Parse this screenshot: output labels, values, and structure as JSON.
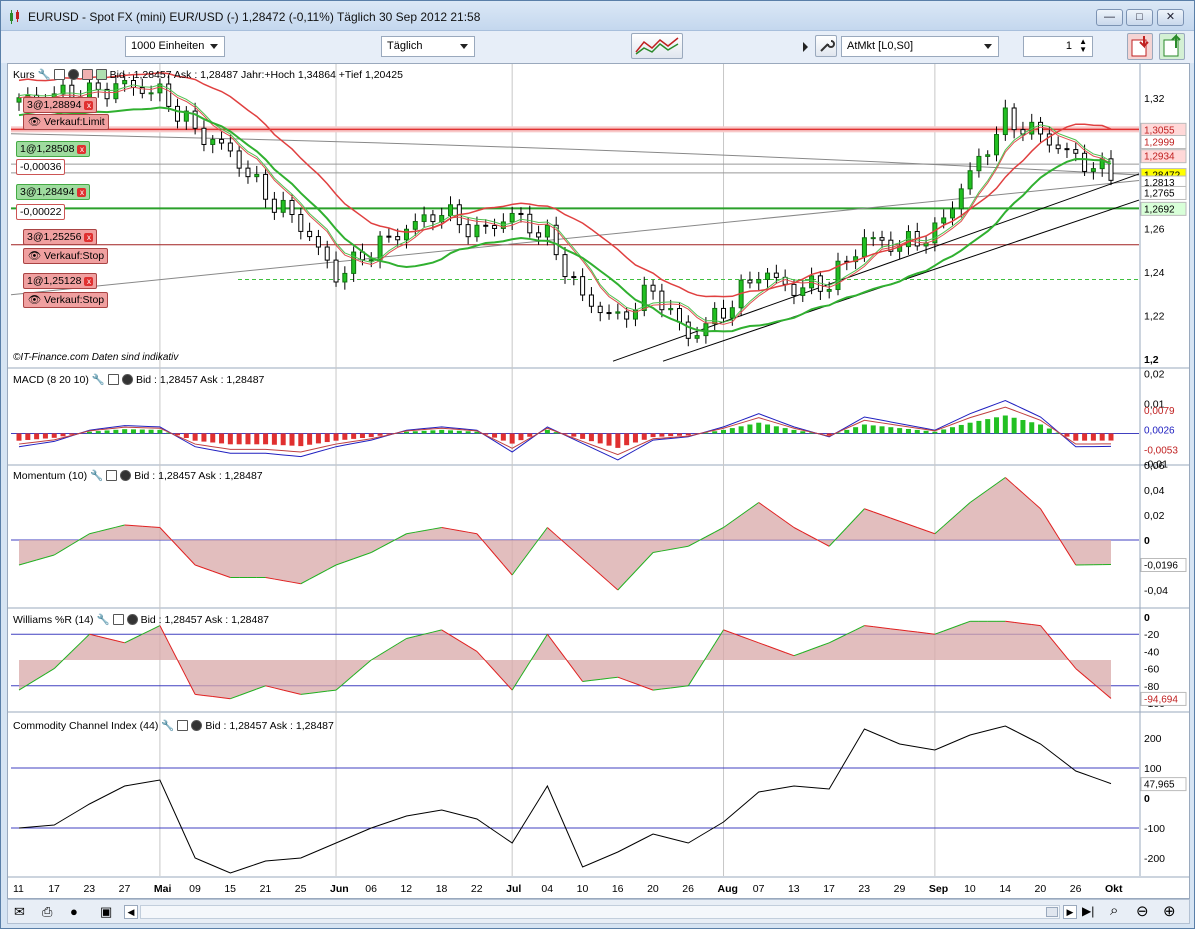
{
  "window": {
    "title": "EURUSD - Spot FX (mini) EUR/USD (-)  1,28472 (-0,11%)   Täglich  30 Sep 2012 21:58"
  },
  "toolbar": {
    "units": "1000 Einheiten",
    "period": "Täglich",
    "order_type": "AtMkt [L0,S0]",
    "quantity": "1"
  },
  "panels": {
    "price": {
      "name": "Kurs",
      "info": "Bid : 1,28457 Ask : 1,28487 Jahr:+Hoch 1,34864 +Tief 1,20425",
      "footer": "©IT-Finance.com   Daten sind indikativ",
      "ylabels": [
        "1,32",
        "1,3",
        "1,28",
        "1,26",
        "1,24",
        "1,22",
        "1,2"
      ],
      "price_tags": [
        {
          "text": "1,3055",
          "color": "#ffd8d8"
        },
        {
          "text": "1,2999",
          "color": "#ffffff"
        },
        {
          "text": "1,2934",
          "color": "#ffd8d8"
        },
        {
          "text": "1,28472",
          "color": "#ffff00"
        },
        {
          "text": "1,2813",
          "color": "#ffffff"
        },
        {
          "text": "1,2765",
          "color": "#ffffff"
        },
        {
          "text": "1,2692",
          "color": "#d8ffd8"
        }
      ],
      "orders": [
        {
          "label": "3@1,28894",
          "kind": "red"
        },
        {
          "label": "Verkauf:Limit",
          "kind": "red"
        },
        {
          "label": "1@1,28508",
          "kind": "green"
        },
        {
          "label": "-0,00036",
          "kind": "pale"
        },
        {
          "label": "3@1,28494",
          "kind": "green"
        },
        {
          "label": "-0,00022",
          "kind": "pale"
        },
        {
          "label": "3@1,25256",
          "kind": "red"
        },
        {
          "label": "Verkauf:Stop",
          "kind": "red"
        },
        {
          "label": "1@1,25128",
          "kind": "red"
        },
        {
          "label": "Verkauf:Stop",
          "kind": "red"
        }
      ]
    },
    "macd": {
      "name": "MACD (8 20 10)",
      "info": "Bid : 1,28457 Ask : 1,28487",
      "ylabels": [
        "0,02",
        "0,01",
        "-0,01"
      ],
      "tags": [
        "0,0079",
        "0,0026",
        "-0,0053"
      ]
    },
    "momentum": {
      "name": "Momentum (10)",
      "info": "Bid : 1,28457 Ask : 1,28487",
      "ylabels": [
        "0,06",
        "0,04",
        "0,02",
        "0",
        "-0,02",
        "-0,04"
      ],
      "tag": "-0,0196"
    },
    "williams": {
      "name": "Williams %R (14)",
      "info": "Bid : 1,28457 Ask : 1,28487",
      "ylabels": [
        "0",
        "-20",
        "-40",
        "-60",
        "-80",
        "-100"
      ],
      "tag": "-94,694"
    },
    "cci": {
      "name": "Commodity Channel Index (44)",
      "info": "Bid : 1,28457 Ask : 1,28487",
      "ylabels": [
        "200",
        "100",
        "0",
        "-100",
        "-200"
      ],
      "tag": "47,965"
    }
  },
  "xaxis": [
    "11",
    "17",
    "23",
    "27",
    "Mai",
    "09",
    "15",
    "21",
    "25",
    "Jun",
    "06",
    "12",
    "18",
    "22",
    "Jul",
    "04",
    "10",
    "16",
    "20",
    "26",
    "Aug",
    "07",
    "13",
    "17",
    "23",
    "29",
    "Sep",
    "10",
    "14",
    "20",
    "26",
    "Okt"
  ],
  "chart_data": {
    "type": "line",
    "title": "EURUSD - Spot FX (mini) EUR/USD",
    "x": [
      "11",
      "17",
      "23",
      "27",
      "Mai",
      "09",
      "15",
      "21",
      "25",
      "Jun",
      "06",
      "12",
      "18",
      "22",
      "Jul",
      "04",
      "10",
      "16",
      "20",
      "26",
      "Aug",
      "07",
      "13",
      "17",
      "23",
      "29",
      "Sep",
      "10",
      "14",
      "20",
      "26",
      "Okt"
    ],
    "series": [
      {
        "name": "Kurs",
        "values": [
          1.318,
          1.322,
          1.322,
          1.326,
          1.322,
          1.305,
          1.295,
          1.275,
          1.262,
          1.238,
          1.25,
          1.26,
          1.268,
          1.258,
          1.266,
          1.256,
          1.228,
          1.218,
          1.232,
          1.21,
          1.222,
          1.24,
          1.232,
          1.235,
          1.255,
          1.252,
          1.258,
          1.285,
          1.31,
          1.303,
          1.292,
          1.2847
        ]
      },
      {
        "name": "Momentum (10)",
        "values": [
          -0.02,
          -0.012,
          0.005,
          0.012,
          0.01,
          -0.02,
          -0.03,
          -0.03,
          -0.035,
          -0.02,
          -0.01,
          0.005,
          0.01,
          0.005,
          -0.028,
          0.01,
          -0.015,
          -0.04,
          -0.01,
          -0.005,
          0.01,
          0.03,
          0.01,
          -0.005,
          0.025,
          0.015,
          0.005,
          0.03,
          0.05,
          0.025,
          -0.02,
          -0.0196
        ]
      },
      {
        "name": "Williams %R (14)",
        "values": [
          -85,
          -60,
          -20,
          -30,
          -10,
          -90,
          -95,
          -80,
          -90,
          -85,
          -50,
          -25,
          -15,
          -40,
          -85,
          -20,
          -75,
          -70,
          -85,
          -80,
          -15,
          -30,
          -45,
          -30,
          -10,
          -15,
          -20,
          -5,
          -5,
          -10,
          -60,
          -94.694
        ]
      },
      {
        "name": "Commodity Channel Index (44)",
        "values": [
          -100,
          -90,
          -20,
          40,
          60,
          -200,
          -250,
          -210,
          -200,
          -150,
          -100,
          -60,
          -40,
          -70,
          -150,
          40,
          -230,
          -180,
          -120,
          -150,
          -80,
          20,
          40,
          30,
          230,
          180,
          160,
          210,
          240,
          180,
          90,
          47.965
        ]
      }
    ],
    "ylim_price": [
      1.2,
      1.33
    ]
  }
}
